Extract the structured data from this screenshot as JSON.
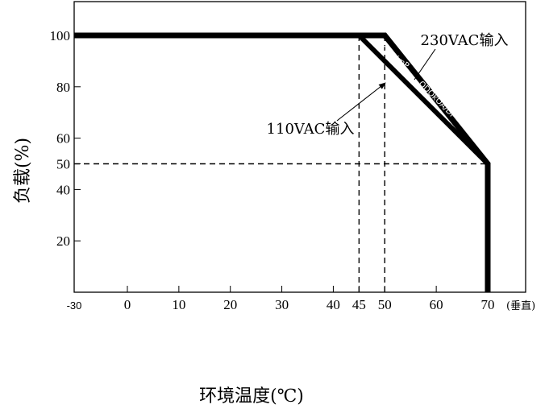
{
  "chart_data": {
    "type": "line",
    "xlabel": "环境温度(℃)",
    "ylabel": "负载(%)",
    "x_unit_note": "(垂直)",
    "xlim": [
      -30,
      70
    ],
    "ylim": [
      0,
      112
    ],
    "x_ticks": [
      {
        "value": -30,
        "label": "-30"
      },
      {
        "value": 0,
        "label": "0"
      },
      {
        "value": 10,
        "label": "10"
      },
      {
        "value": 20,
        "label": "20"
      },
      {
        "value": 30,
        "label": "30"
      },
      {
        "value": 40,
        "label": "40"
      },
      {
        "value": 45,
        "label": "45"
      },
      {
        "value": 50,
        "label": "50"
      },
      {
        "value": 60,
        "label": "60"
      },
      {
        "value": 70,
        "label": "70"
      }
    ],
    "y_ticks": [
      {
        "value": 20,
        "label": "20"
      },
      {
        "value": 40,
        "label": "40"
      },
      {
        "value": 50,
        "label": "50"
      },
      {
        "value": 60,
        "label": "60"
      },
      {
        "value": 80,
        "label": "80"
      },
      {
        "value": 100,
        "label": "100"
      }
    ],
    "series": [
      {
        "name": "230VAC输入",
        "x": [
          -30,
          50,
          70,
          70
        ],
        "y": [
          100,
          100,
          50,
          0
        ]
      },
      {
        "name": "110VAC输入",
        "x": [
          -30,
          45,
          70
        ],
        "y": [
          100,
          100,
          50
        ]
      }
    ],
    "reference_lines": [
      {
        "x": [
          45,
          45
        ],
        "y": [
          0,
          100
        ]
      },
      {
        "x": [
          50,
          50
        ],
        "y": [
          0,
          100
        ]
      },
      {
        "x": [
          -30,
          70
        ],
        "y": [
          50,
          50
        ]
      }
    ],
    "annotations": [
      {
        "text": "230VAC输入",
        "series": 0
      },
      {
        "text": "110VAC输入",
        "series": 1
      }
    ],
    "inline_labels": [
      "1DOkO(mP",
      "QDOkOA/DP"
    ],
    "grid": false
  }
}
